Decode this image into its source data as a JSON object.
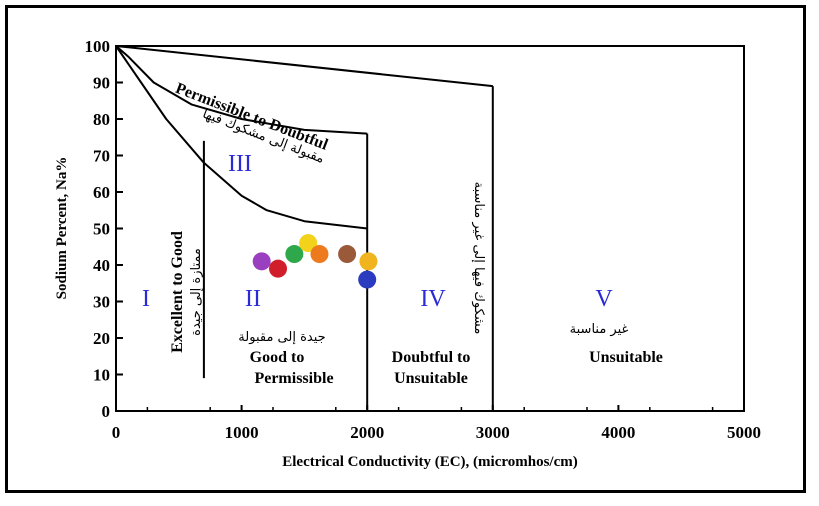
{
  "chart_data": {
    "type": "scatter",
    "xlabel": "Electrical Conductivity (EC), (micromhos/cm)",
    "ylabel": "Sodium Percent, Na%",
    "xlim": [
      0,
      5000
    ],
    "ylim": [
      0,
      100
    ],
    "x_ticks": [
      "0",
      "1000",
      "2000",
      "3000",
      "4000",
      "5000"
    ],
    "y_ticks": [
      "0",
      "10",
      "20",
      "30",
      "40",
      "50",
      "60",
      "70",
      "80",
      "90",
      "100"
    ],
    "boundaries": [
      {
        "name": "curve-upper",
        "points": [
          [
            0,
            100
          ],
          [
            100,
            97
          ],
          [
            300,
            90
          ],
          [
            600,
            84
          ],
          [
            1000,
            80
          ],
          [
            1500,
            77
          ],
          [
            2000,
            76
          ]
        ]
      },
      {
        "name": "curve-lower",
        "points": [
          [
            0,
            100
          ],
          [
            200,
            90
          ],
          [
            400,
            80
          ],
          [
            700,
            68
          ],
          [
            1000,
            59
          ],
          [
            1200,
            55
          ],
          [
            1500,
            52
          ],
          [
            2000,
            50
          ]
        ]
      },
      {
        "name": "line-top",
        "points": [
          [
            0,
            100
          ],
          [
            3000,
            89
          ]
        ]
      },
      {
        "name": "line-ec2000",
        "points": [
          [
            2000,
            0
          ],
          [
            2000,
            76
          ]
        ]
      },
      {
        "name": "line-ec3000",
        "points": [
          [
            3000,
            0
          ],
          [
            3000,
            89
          ]
        ]
      },
      {
        "name": "line-ec700",
        "points": [
          [
            700,
            9
          ],
          [
            700,
            74
          ]
        ]
      }
    ],
    "zones": [
      {
        "roman": "I",
        "label": "Excellent to Good",
        "arabic": "ممتازة إلى جيدة",
        "x": 220,
        "y": 30
      },
      {
        "roman": "II",
        "label_line1": "Good to",
        "label_line2": "Permissible",
        "arabic": "جيدة إلى مقبولة",
        "x": 1080,
        "y": 30
      },
      {
        "roman": "III",
        "label": "Permissible to Doubtful",
        "arabic": "مقبولة إلى مشكوك فيها",
        "x": 980,
        "y": 68
      },
      {
        "roman": "IV",
        "label_line1": "Doubtful to",
        "label_line2": "Unsuitable",
        "arabic": "مشكوك فيها إلى غير مناسبة",
        "x": 2550,
        "y": 30
      },
      {
        "roman": "V",
        "label": "Unsuitable",
        "arabic": "غير مناسبة",
        "x": 3880,
        "y": 30
      }
    ],
    "points": [
      {
        "x": 1160,
        "y": 41,
        "color": "#9a3fbf"
      },
      {
        "x": 1290,
        "y": 39,
        "color": "#d01f2a"
      },
      {
        "x": 1420,
        "y": 43,
        "color": "#2ea84a"
      },
      {
        "x": 1530,
        "y": 46,
        "color": "#f2d21a"
      },
      {
        "x": 1620,
        "y": 43,
        "color": "#ee7a1e"
      },
      {
        "x": 1840,
        "y": 43,
        "color": "#9a5a3a"
      },
      {
        "x": 2010,
        "y": 41,
        "color": "#f0b41f"
      },
      {
        "x": 2000,
        "y": 36,
        "color": "#2a3bbf"
      }
    ]
  }
}
